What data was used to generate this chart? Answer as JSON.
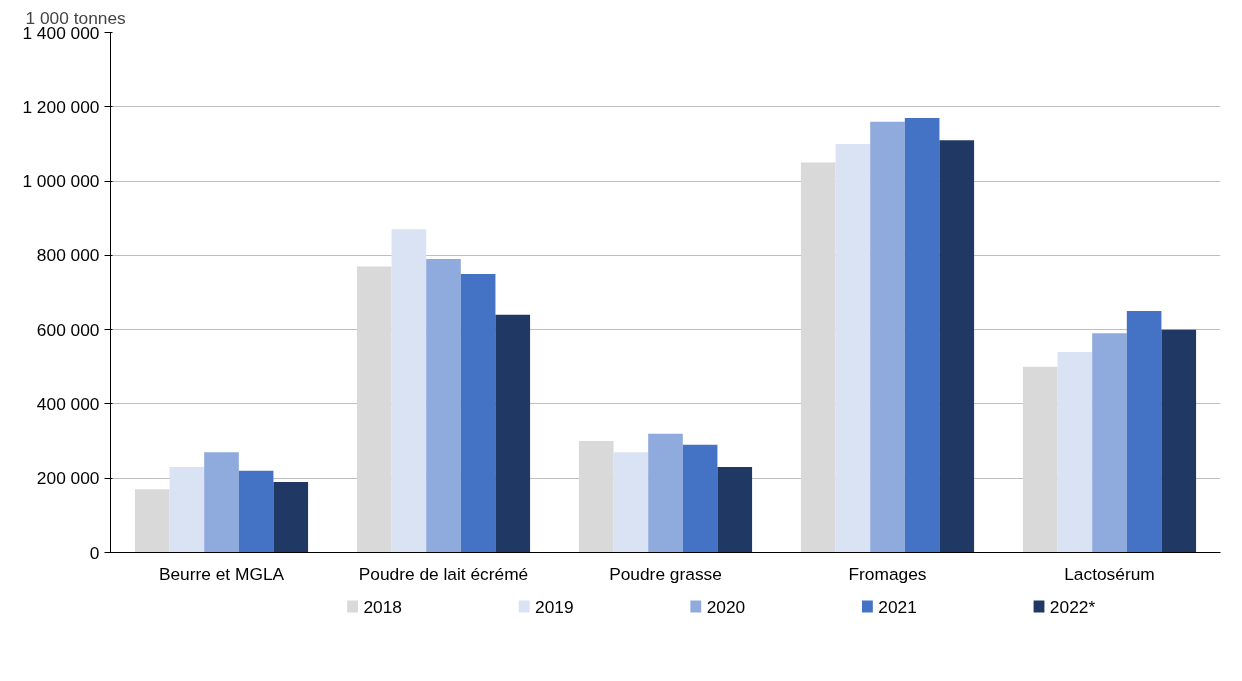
{
  "chart_data": {
    "type": "bar",
    "ylabel": "1 000 tonnes",
    "categories": [
      "Beurre et MGLA",
      "Poudre de lait écrémé",
      "Poudre grasse",
      "Fromages",
      "Lactosérum"
    ],
    "series": [
      {
        "name": "2018",
        "color": "#d9d9d9",
        "values": [
          170000,
          770000,
          300000,
          1050000,
          500000
        ]
      },
      {
        "name": "2019",
        "color": "#dae3f3",
        "values": [
          230000,
          870000,
          270000,
          1100000,
          540000
        ]
      },
      {
        "name": "2020",
        "color": "#8faadc",
        "values": [
          270000,
          790000,
          320000,
          1160000,
          590000
        ]
      },
      {
        "name": "2021",
        "color": "#4472c4",
        "values": [
          220000,
          750000,
          290000,
          1170000,
          650000
        ]
      },
      {
        "name": "2022*",
        "color": "#203864",
        "values": [
          190000,
          640000,
          230000,
          1110000,
          600000
        ]
      }
    ],
    "ylim": [
      0,
      1400000
    ],
    "yticks": [
      {
        "value": 0,
        "label": "0"
      },
      {
        "value": 200000,
        "label": "200 000"
      },
      {
        "value": 400000,
        "label": "400 000"
      },
      {
        "value": 600000,
        "label": "600 000"
      },
      {
        "value": 800000,
        "label": "800 000"
      },
      {
        "value": 1000000,
        "label": "1 000 000"
      },
      {
        "value": 1200000,
        "label": "1 200 000"
      },
      {
        "value": 1400000,
        "label": "1 400 000"
      }
    ],
    "grid": "y",
    "legend": "bottom"
  }
}
